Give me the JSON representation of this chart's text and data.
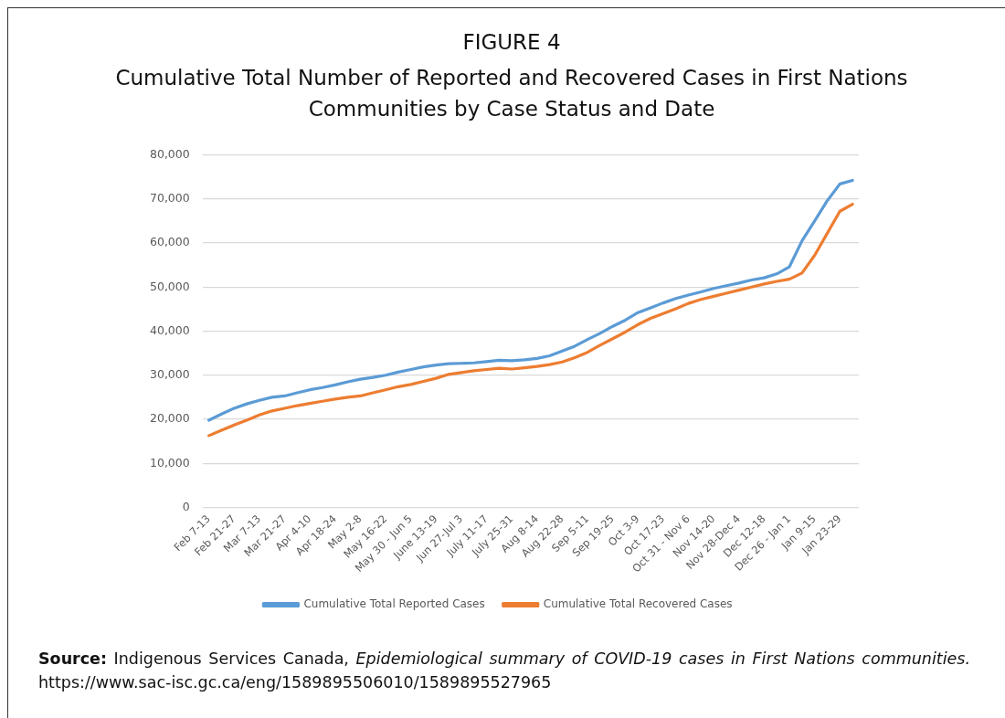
{
  "chart_data": {
    "type": "line",
    "title": "FIGURE 4",
    "subtitle": "Cumulative Total Number of Reported and Recovered Cases in First Nations Communities by Case Status and Date",
    "categories": [
      "Feb 7-13",
      null,
      "Feb 21-27",
      null,
      "Mar 7-13",
      null,
      "Mar 21-27",
      null,
      "Apr 4-10",
      null,
      "Apr 18-24",
      null,
      "May 2-8",
      null,
      "May 16-22",
      null,
      "May 30 - Jun 5",
      null,
      "June 13-19",
      null,
      "Jun 27-Jul 3",
      null,
      "July 11-17",
      null,
      "July 25-31",
      null,
      "Aug 8-14",
      null,
      "Aug 22-28",
      null,
      "Sep 5-11",
      null,
      "Sep 19-25",
      null,
      "Oct 3-9",
      null,
      "Oct 17-23",
      null,
      "Oct 31 - Nov 6",
      null,
      "Nov 14-20",
      null,
      "Nov 28-Dec 4",
      null,
      "Dec 12-18",
      null,
      "Dec 26 - Jan 1",
      null,
      "Jan 9-15",
      null,
      "Jan 23-29",
      null
    ],
    "series": [
      {
        "name": "Cumulative Total Reported Cases",
        "color": "#5b9bd5",
        "values": [
          19800,
          21200,
          22500,
          23500,
          24300,
          25000,
          25300,
          26000,
          26700,
          27200,
          27800,
          28500,
          29100,
          29500,
          30000,
          30700,
          31300,
          31900,
          32300,
          32600,
          32700,
          32800,
          33100,
          33400,
          33300,
          33500,
          33800,
          34400,
          35500,
          36600,
          38100,
          39500,
          41100,
          42500,
          44200,
          45300,
          46400,
          47400,
          48200,
          48900,
          49700,
          50300,
          50900,
          51600,
          52100,
          53000,
          54600,
          60500,
          65000,
          69600,
          73400,
          74200
        ]
      },
      {
        "name": "Cumulative Total Recovered Cases",
        "color": "#ed7d31",
        "values": [
          16300,
          17500,
          18700,
          19800,
          21000,
          21900,
          22500,
          23100,
          23600,
          24100,
          24600,
          25000,
          25300,
          26000,
          26700,
          27400,
          27900,
          28600,
          29300,
          30200,
          30600,
          31000,
          31300,
          31600,
          31400,
          31700,
          32000,
          32400,
          33000,
          34000,
          35200,
          36800,
          38300,
          39800,
          41500,
          42900,
          44000,
          45100,
          46300,
          47200,
          47900,
          48600,
          49300,
          50000,
          50700,
          51300,
          51800,
          53200,
          57200,
          62200,
          67200,
          68800
        ]
      }
    ],
    "ylim": [
      0,
      80000
    ],
    "yticks": [
      0,
      {
        "value": 10000,
        "label": "10,000"
      },
      {
        "value": 20000,
        "label": "20,000"
      },
      {
        "value": 30000,
        "label": "30,000"
      },
      {
        "value": 40000,
        "label": "40,000"
      },
      {
        "value": 50000,
        "label": "50,000"
      },
      {
        "value": 60000,
        "label": "60,000"
      },
      {
        "value": 70000,
        "label": "70,000"
      },
      {
        "value": 80000,
        "label": "80,000"
      }
    ],
    "grid": "y",
    "legend": "bottom",
    "marker": "none",
    "line_style": "solid",
    "annotations": [
      "Source:",
      "Indigenous Services Canada,",
      "Epidemiological summary of COVID-19 cases in First Nations communities.",
      "https://www.sac-isc.gc.ca/eng/1589895506010/1589895527965"
    ]
  }
}
